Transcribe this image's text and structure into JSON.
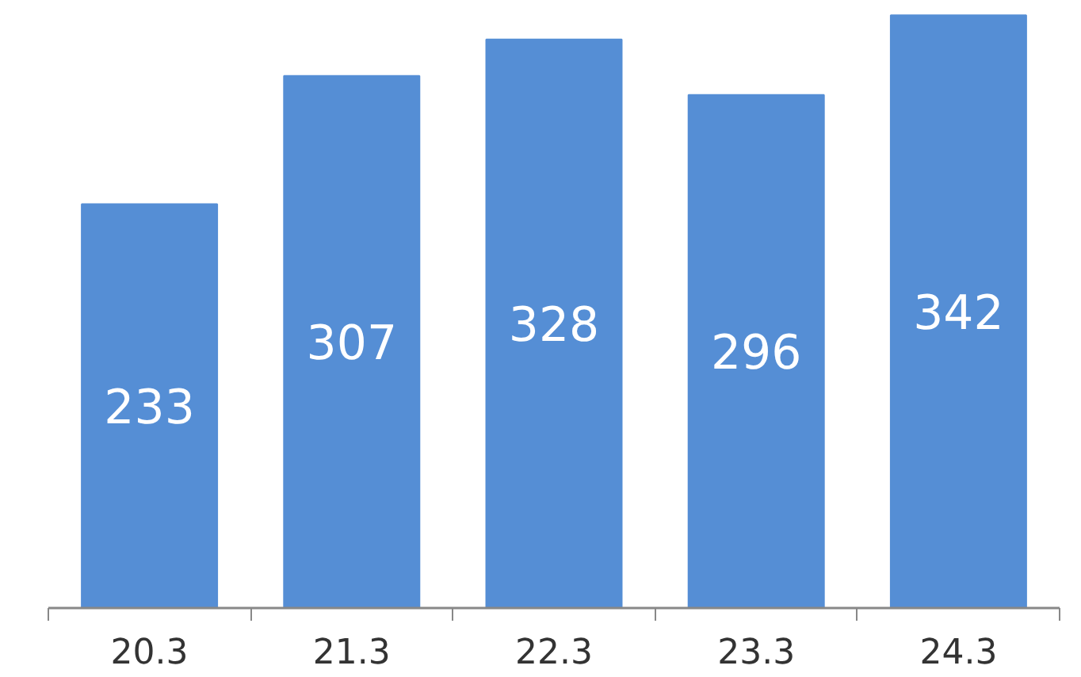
{
  "chart_data": {
    "type": "bar",
    "categories": [
      "20.3",
      "21.3",
      "22.3",
      "23.3",
      "24.3"
    ],
    "values": [
      233,
      307,
      328,
      296,
      342
    ],
    "color": "#558ed5",
    "data_labels": true
  }
}
